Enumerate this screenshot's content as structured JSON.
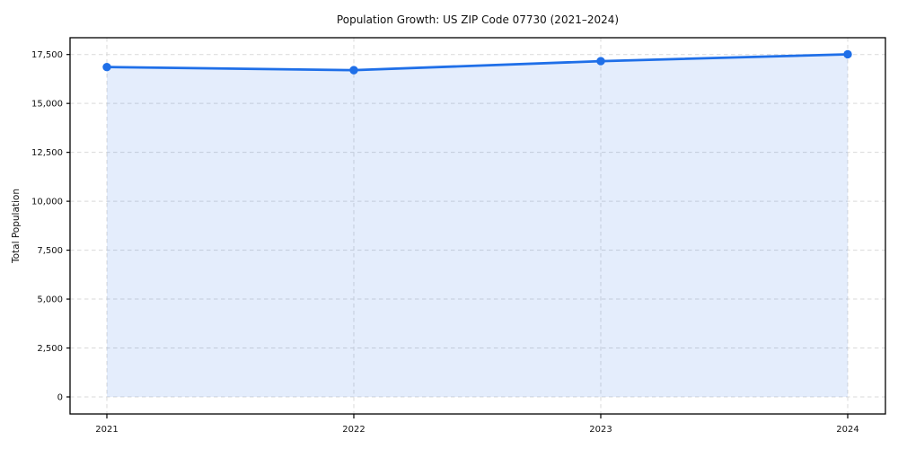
{
  "figure": {
    "background": "#ffffff"
  },
  "chart_data": {
    "type": "line",
    "title": "Population Growth: US ZIP Code 07730 (2021–2024)",
    "xlabel": "",
    "ylabel": "Total Population",
    "categories": [
      "2021",
      "2022",
      "2023",
      "2024"
    ],
    "series": [
      {
        "name": "Total Population",
        "values": [
          16860,
          16700,
          17160,
          17510
        ]
      }
    ],
    "ylim": [
      0,
      17500
    ],
    "y_ticks": {
      "values": [
        0,
        2500,
        5000,
        7500,
        10000,
        12500,
        15000,
        17500
      ],
      "labels": [
        "0",
        "2,500",
        "5,000",
        "7,500",
        "10,000",
        "12,500",
        "15,000",
        "17,500"
      ]
    },
    "grid": true,
    "grid_style": "dashed",
    "legend": "none",
    "area_fill": true,
    "markers": true,
    "colors": {
      "line": "#1f6fe8",
      "marker": "#1f6fe8",
      "area": "rgba(31,111,232,0.12)",
      "grid": "#d9d9d9",
      "spine": "#000000",
      "text": "#111111"
    }
  }
}
